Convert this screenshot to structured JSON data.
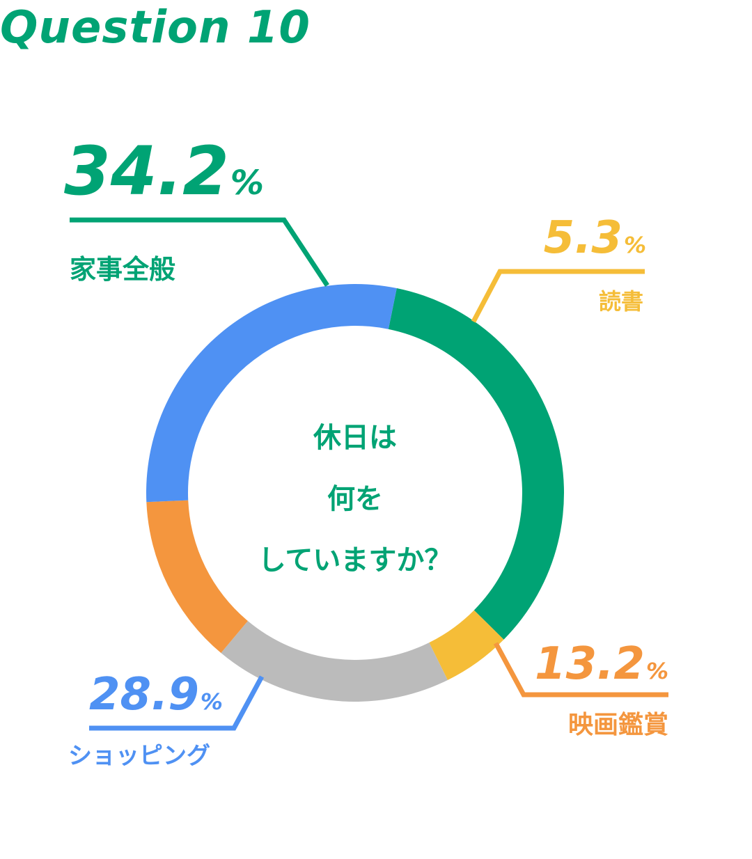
{
  "title": "Question 10",
  "center_text": [
    "休日は",
    "何を",
    "していますか？"
  ],
  "chart_data": {
    "type": "pie",
    "slices": [
      {
        "label": "家事全般",
        "value": 34.2,
        "value_text": "34.2",
        "color": "#00a374"
      },
      {
        "label": "読書",
        "value": 5.3,
        "value_text": "5.3",
        "color": "#f5bd38"
      },
      {
        "label": "",
        "value": 18.4,
        "value_text": "",
        "color": "#bbbbbb"
      },
      {
        "label": "映画鑑賞",
        "value": 13.2,
        "value_text": "13.2",
        "color": "#f4963e"
      },
      {
        "label": "ショッピング",
        "value": 28.9,
        "value_text": "28.9",
        "color": "#4f91f3"
      }
    ],
    "unit": "%"
  }
}
